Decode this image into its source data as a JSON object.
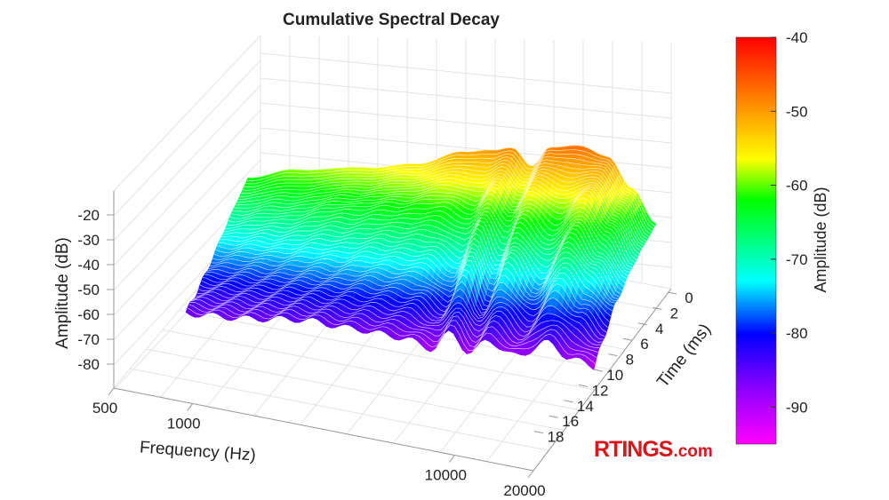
{
  "chart_data": {
    "type": "surface",
    "title": "Cumulative Spectral Decay",
    "x_axis": {
      "label": "Frequency (Hz)",
      "scale": "log",
      "range": [
        500,
        20000
      ],
      "ticks": [
        "500",
        "1000",
        "10000",
        "20000"
      ],
      "tick_values": [
        500,
        1000,
        10000,
        20000
      ]
    },
    "y_axis": {
      "label": "Time (ms)",
      "range": [
        0,
        20
      ],
      "ticks": [
        "0",
        "2",
        "4",
        "6",
        "8",
        "10",
        "12",
        "14",
        "16",
        "18"
      ],
      "tick_values": [
        0,
        2,
        4,
        6,
        8,
        10,
        12,
        14,
        16,
        18
      ]
    },
    "z_axis": {
      "label": "Amplitude (dB)",
      "ticks": [
        "-20",
        "-30",
        "-40",
        "-50",
        "-60",
        "-70",
        "-80"
      ],
      "tick_values": [
        -20,
        -30,
        -40,
        -50,
        -60,
        -70,
        -80
      ]
    },
    "colorbar": {
      "label": "Amplitude (dB)",
      "range": [
        -95,
        -40
      ],
      "ticks": [
        "-40",
        "-50",
        "-60",
        "-70",
        "-80",
        "-90"
      ],
      "tick_values": [
        -40,
        -50,
        -60,
        -70,
        -80,
        -90
      ],
      "colormap": [
        "#ff00ff",
        "#8000ff",
        "#0000ff",
        "#00ffff",
        "#00ff00",
        "#ffff00",
        "#ff8000",
        "#ff0000"
      ]
    },
    "grid": true,
    "surface": {
      "frequency_hz": [
        870,
        1255,
        2180,
        3160,
        4580,
        5700,
        6630,
        7680,
        8900,
        11100,
        13800,
        16600,
        20000
      ],
      "slices": [
        {
          "time_ms": 0,
          "amplitude_db": [
            -62,
            -59,
            -57,
            -55,
            -51,
            -50,
            -49,
            -53,
            -48,
            -47,
            -49,
            -56,
            -64
          ]
        },
        {
          "time_ms": 3,
          "amplitude_db": [
            -70,
            -68,
            -64,
            -62,
            -60,
            -62,
            -57,
            -62,
            -56,
            -60,
            -55,
            -62,
            -70
          ]
        },
        {
          "time_ms": 6,
          "amplitude_db": [
            -79,
            -78,
            -76,
            -74,
            -74,
            -78,
            -68,
            -78,
            -68,
            -76,
            -66,
            -72,
            -78
          ]
        },
        {
          "time_ms": 9,
          "amplitude_db": [
            -86,
            -86,
            -85,
            -86,
            -87,
            -89,
            -85,
            -89,
            -86,
            -89,
            -85,
            -88,
            -90
          ]
        }
      ]
    }
  },
  "logo": {
    "text_main": "RTINGS",
    "text_suffix": ".com",
    "color": "#d9161c"
  }
}
